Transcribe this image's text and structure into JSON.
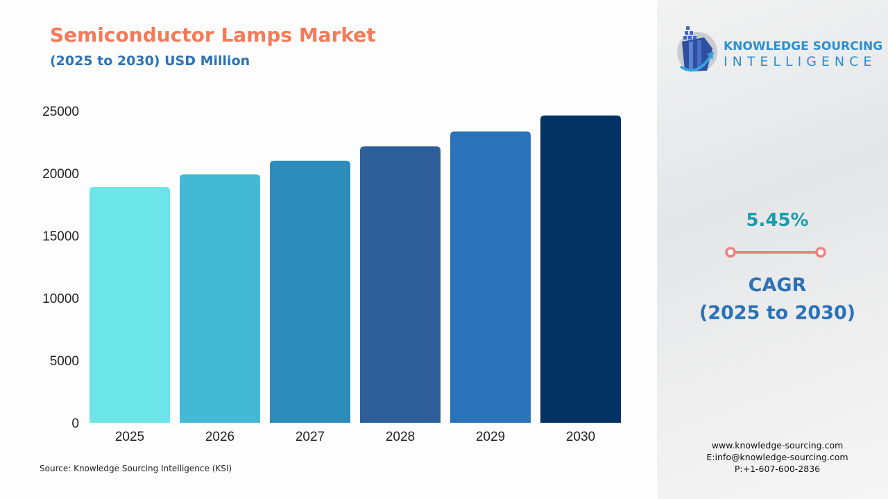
{
  "header": {
    "title": "Semiconductor Lamps Market",
    "subtitle": "(2025 to 2030) USD Million"
  },
  "source": "Source: Knowledge Sourcing Intelligence (KSI)",
  "logo": {
    "line1": "KNOWLEDGE SOURCING",
    "line2": "INTELLIGENCE"
  },
  "cagr": {
    "value": "5.45%",
    "label": "CAGR",
    "period": "(2025 to 2030)",
    "accent": "#f08080"
  },
  "contact": {
    "website": "www.knowledge-sourcing.com",
    "email": "E:info@knowledge-sourcing.com",
    "phone": "P:+1-607-600-2836"
  },
  "chart_data": {
    "type": "bar",
    "title": "Semiconductor Lamps Market",
    "subtitle": "(2025 to 2030) USD Million",
    "categories": [
      "2025",
      "2026",
      "2027",
      "2028",
      "2029",
      "2030"
    ],
    "values": [
      18890,
      19920,
      21005,
      22150,
      23357,
      24630
    ],
    "colors": [
      "#6ce5e8",
      "#43b9d6",
      "#2e8cba",
      "#2e5f98",
      "#2b72b8",
      "#023362"
    ],
    "ylim": [
      0,
      25000
    ],
    "yticks": [
      "0",
      "5000",
      "10000",
      "15000",
      "20000",
      "25000"
    ],
    "grid": false,
    "xlabel": "",
    "ylabel": ""
  }
}
